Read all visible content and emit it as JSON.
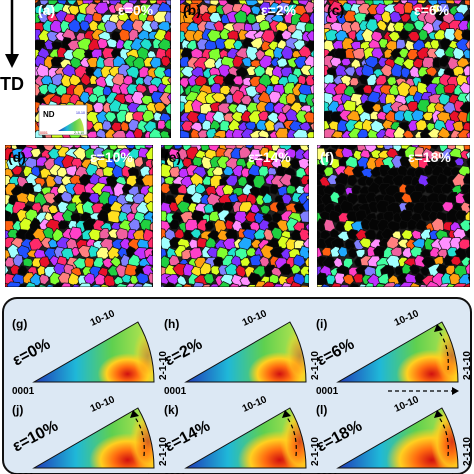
{
  "axis_label": "TD",
  "legend": {
    "title": "ND",
    "labels": [
      "0001",
      "2-1-10",
      "10-10"
    ]
  },
  "ebsd_panels": [
    {
      "tag": "(a)",
      "strain": "ε=0%"
    },
    {
      "tag": "(b)",
      "strain": "ε=2%"
    },
    {
      "tag": "(c)",
      "strain": "ε=6%"
    },
    {
      "tag": "(d)",
      "strain": "ε=10%"
    },
    {
      "tag": "(e)",
      "strain": "ε=14%"
    },
    {
      "tag": "(f)",
      "strain": "ε=18%"
    }
  ],
  "pole_panels": [
    {
      "tag": "(g)",
      "strain": "ε=0%",
      "arrows": false,
      "hot": 0.35
    },
    {
      "tag": "(h)",
      "strain": "ε=2%",
      "arrows": false,
      "hot": 0.4
    },
    {
      "tag": "(i)",
      "strain": "ε=6%",
      "arrows": true,
      "hot": 0.5
    },
    {
      "tag": "(j)",
      "strain": "ε=10%",
      "arrows": true,
      "hot": 0.6
    },
    {
      "tag": "(k)",
      "strain": "ε=14%",
      "arrows": true,
      "hot": 0.7
    },
    {
      "tag": "(l)",
      "strain": "ε=18%",
      "arrows": true,
      "hot": 0.8
    }
  ],
  "pole_labels": {
    "origin": "0001",
    "right": "2-1-10",
    "top": "10-10"
  },
  "colors": {
    "red": "#e41a1c",
    "yellow": "#ffff33",
    "green": "#4daf4a",
    "blue": "#1f3ab8"
  }
}
